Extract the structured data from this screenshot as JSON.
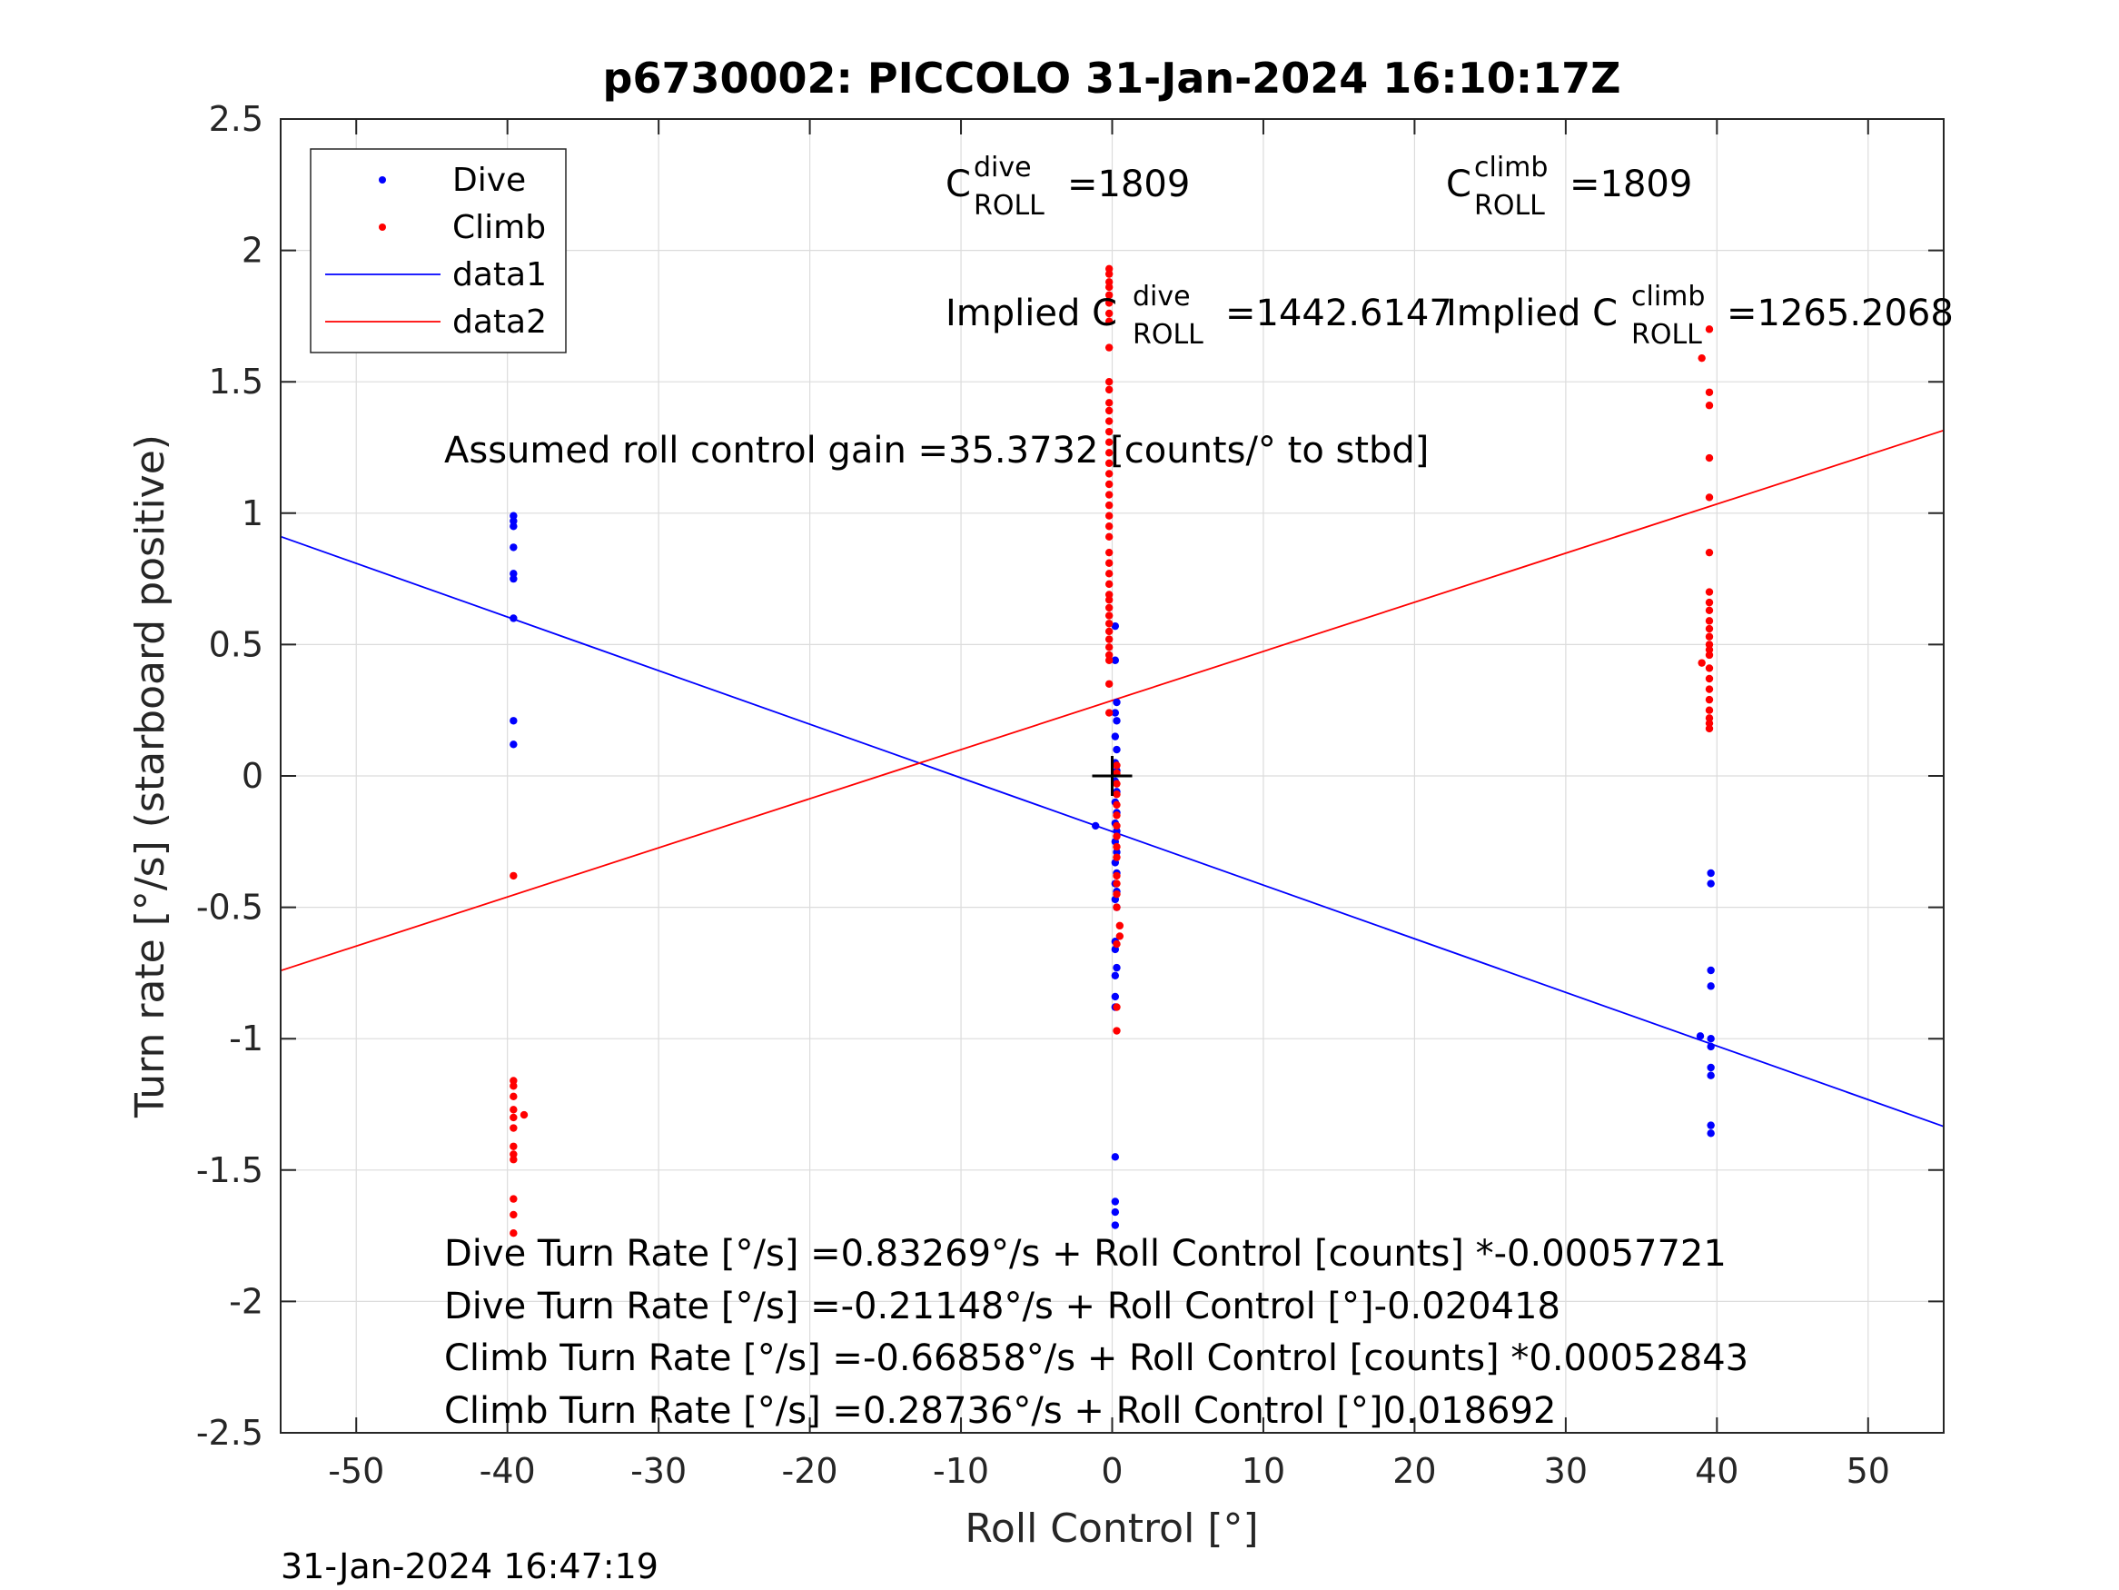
{
  "chart_data": {
    "type": "scatter",
    "title": "p6730002: PICCOLO 31-Jan-2024 16:10:17Z",
    "xlabel": "Roll Control [°]",
    "ylabel": "Turn rate [°/s] (starboard positive)",
    "xlim": [
      -55,
      55
    ],
    "ylim": [
      -2.5,
      2.5
    ],
    "xticks": [
      -50,
      -40,
      -30,
      -20,
      -10,
      0,
      10,
      20,
      30,
      40,
      50
    ],
    "xtick_labels": [
      "-50",
      "-40",
      "-30",
      "-20",
      "-10",
      "0",
      "10",
      "20",
      "30",
      "40",
      "50"
    ],
    "yticks": [
      -2.5,
      -2,
      -1.5,
      -1,
      -0.5,
      0,
      0.5,
      1,
      1.5,
      2,
      2.5
    ],
    "ytick_labels": [
      "-2.5",
      "-2",
      "-1.5",
      "-1",
      "-0.5",
      "0",
      "0.5",
      "1",
      "1.5",
      "2",
      "2.5"
    ],
    "grid": true,
    "legend_position": "top-left",
    "legend": [
      {
        "label": "Dive",
        "kind": "marker",
        "color": "#0000ff"
      },
      {
        "label": "Climb",
        "kind": "marker",
        "color": "#ff0000"
      },
      {
        "label": "data1",
        "kind": "line",
        "color": "#0000ff"
      },
      {
        "label": "data2",
        "kind": "line",
        "color": "#ff0000"
      }
    ],
    "series": [
      {
        "name": "Dive",
        "kind": "scatter",
        "color": "#0000ff",
        "points": [
          [
            -39.6,
            0.99
          ],
          [
            -39.6,
            0.97
          ],
          [
            -39.6,
            0.95
          ],
          [
            -39.6,
            0.87
          ],
          [
            -39.6,
            0.77
          ],
          [
            -39.6,
            0.75
          ],
          [
            -39.6,
            0.6
          ],
          [
            -39.6,
            0.21
          ],
          [
            -39.6,
            0.12
          ],
          [
            0.2,
            0.57
          ],
          [
            0.2,
            0.44
          ],
          [
            0.3,
            0.28
          ],
          [
            0.2,
            0.24
          ],
          [
            0.3,
            0.21
          ],
          [
            0.2,
            0.15
          ],
          [
            0.3,
            0.1
          ],
          [
            0.2,
            0.05
          ],
          [
            0.3,
            0.02
          ],
          [
            0.2,
            -0.02
          ],
          [
            0.3,
            -0.06
          ],
          [
            0.2,
            -0.1
          ],
          [
            0.3,
            -0.14
          ],
          [
            0.2,
            -0.18
          ],
          [
            0.3,
            -0.21
          ],
          [
            0.2,
            -0.25
          ],
          [
            0.3,
            -0.29
          ],
          [
            0.2,
            -0.33
          ],
          [
            0.3,
            -0.37
          ],
          [
            0.2,
            -0.41
          ],
          [
            0.3,
            -0.44
          ],
          [
            0.2,
            -0.47
          ],
          [
            0.3,
            -0.5
          ],
          [
            0.2,
            -0.63
          ],
          [
            0.2,
            -0.66
          ],
          [
            0.3,
            -0.73
          ],
          [
            0.2,
            -0.76
          ],
          [
            0.2,
            -0.84
          ],
          [
            0.2,
            -0.88
          ],
          [
            0.2,
            -1.45
          ],
          [
            0.2,
            -1.62
          ],
          [
            0.2,
            -1.66
          ],
          [
            0.2,
            -1.71
          ],
          [
            -1.1,
            -0.19
          ],
          [
            39.6,
            -0.37
          ],
          [
            39.6,
            -0.41
          ],
          [
            39.6,
            -0.74
          ],
          [
            39.6,
            -0.8
          ],
          [
            38.9,
            -0.99
          ],
          [
            39.6,
            -1.0
          ],
          [
            39.6,
            -1.03
          ],
          [
            39.6,
            -1.11
          ],
          [
            39.6,
            -1.14
          ],
          [
            39.6,
            -1.33
          ],
          [
            39.6,
            -1.36
          ]
        ]
      },
      {
        "name": "Climb",
        "kind": "scatter",
        "color": "#ff0000",
        "points": [
          [
            -39.6,
            -0.38
          ],
          [
            -39.6,
            -1.16
          ],
          [
            -39.6,
            -1.18
          ],
          [
            -39.6,
            -1.22
          ],
          [
            -39.6,
            -1.27
          ],
          [
            -38.9,
            -1.29
          ],
          [
            -39.6,
            -1.3
          ],
          [
            -39.6,
            -1.34
          ],
          [
            -39.6,
            -1.41
          ],
          [
            -39.6,
            -1.44
          ],
          [
            -39.6,
            -1.46
          ],
          [
            -39.6,
            -1.61
          ],
          [
            -39.6,
            -1.67
          ],
          [
            -39.6,
            -1.74
          ],
          [
            -0.2,
            1.93
          ],
          [
            -0.2,
            1.91
          ],
          [
            -0.2,
            1.88
          ],
          [
            -0.2,
            1.86
          ],
          [
            -0.2,
            1.83
          ],
          [
            -0.2,
            1.8
          ],
          [
            -0.2,
            1.76
          ],
          [
            -0.2,
            1.73
          ],
          [
            -0.2,
            1.63
          ],
          [
            -0.2,
            1.5
          ],
          [
            -0.2,
            1.47
          ],
          [
            -0.2,
            1.42
          ],
          [
            -0.2,
            1.39
          ],
          [
            -0.2,
            1.35
          ],
          [
            -0.2,
            1.31
          ],
          [
            -0.2,
            1.27
          ],
          [
            -0.2,
            1.23
          ],
          [
            -0.2,
            1.19
          ],
          [
            -0.2,
            1.15
          ],
          [
            -0.2,
            1.11
          ],
          [
            -0.2,
            1.07
          ],
          [
            -0.2,
            1.03
          ],
          [
            -0.2,
            0.99
          ],
          [
            -0.2,
            0.95
          ],
          [
            -0.2,
            0.91
          ],
          [
            -0.2,
            0.85
          ],
          [
            -0.2,
            0.81
          ],
          [
            -0.2,
            0.77
          ],
          [
            -0.2,
            0.73
          ],
          [
            -0.2,
            0.69
          ],
          [
            -0.2,
            0.67
          ],
          [
            -0.2,
            0.64
          ],
          [
            -0.2,
            0.61
          ],
          [
            -0.2,
            0.58
          ],
          [
            -0.2,
            0.55
          ],
          [
            -0.2,
            0.52
          ],
          [
            -0.2,
            0.49
          ],
          [
            -0.2,
            0.46
          ],
          [
            -0.2,
            0.44
          ],
          [
            -0.2,
            0.35
          ],
          [
            -0.2,
            0.24
          ],
          [
            0.3,
            0.04
          ],
          [
            0.3,
            0.01
          ],
          [
            0.3,
            -0.03
          ],
          [
            0.3,
            -0.07
          ],
          [
            0.3,
            -0.11
          ],
          [
            0.3,
            -0.15
          ],
          [
            0.3,
            -0.19
          ],
          [
            0.3,
            -0.23
          ],
          [
            0.3,
            -0.27
          ],
          [
            0.3,
            -0.31
          ],
          [
            0.3,
            -0.38
          ],
          [
            0.3,
            -0.41
          ],
          [
            0.3,
            -0.45
          ],
          [
            0.3,
            -0.5
          ],
          [
            0.5,
            -0.57
          ],
          [
            0.5,
            -0.61
          ],
          [
            0.3,
            -0.64
          ],
          [
            0.3,
            -0.88
          ],
          [
            0.3,
            -0.97
          ],
          [
            39.5,
            1.7
          ],
          [
            39.0,
            1.59
          ],
          [
            39.5,
            1.46
          ],
          [
            39.5,
            1.41
          ],
          [
            39.5,
            1.21
          ],
          [
            39.5,
            1.06
          ],
          [
            39.5,
            0.85
          ],
          [
            39.5,
            0.7
          ],
          [
            39.5,
            0.66
          ],
          [
            39.5,
            0.63
          ],
          [
            39.5,
            0.59
          ],
          [
            39.5,
            0.56
          ],
          [
            39.5,
            0.53
          ],
          [
            39.5,
            0.5
          ],
          [
            39.5,
            0.48
          ],
          [
            39.5,
            0.46
          ],
          [
            39.0,
            0.43
          ],
          [
            39.5,
            0.41
          ],
          [
            39.5,
            0.37
          ],
          [
            39.5,
            0.33
          ],
          [
            39.5,
            0.29
          ],
          [
            39.5,
            0.25
          ],
          [
            39.5,
            0.22
          ],
          [
            39.5,
            0.2
          ],
          [
            39.5,
            0.18
          ]
        ]
      },
      {
        "name": "data1",
        "kind": "line",
        "color": "#0000ff",
        "x": [
          -55,
          55
        ],
        "y": [
          0.911,
          -1.334
        ]
      },
      {
        "name": "data2",
        "kind": "line",
        "color": "#ff0000",
        "x": [
          -55,
          55
        ],
        "y": [
          -0.741,
          1.315
        ]
      }
    ],
    "marker": {
      "x": 0,
      "y": 0,
      "symbol": "+",
      "color": "#000000"
    },
    "annotations": {
      "c_dive": {
        "main": "C",
        "sup": "dive",
        "sub": "ROLL",
        "value": "=1809"
      },
      "c_climb": {
        "main": "C",
        "sup": "climb",
        "sub": "ROLL",
        "value": "=1809"
      },
      "implied_dive": {
        "main": "Implied C",
        "sup": "dive",
        "sub": "ROLL",
        "value": "=1442.6147"
      },
      "implied_climb": {
        "main": "Implied C",
        "sup": "climb",
        "sub": "ROLL",
        "value": "=1265.2068"
      },
      "gain": "Assumed roll control gain =35.3732 [counts/° to stbd]",
      "fits": [
        "Dive Turn Rate [°/s] =0.83269°/s + Roll Control [counts] *-0.00057721",
        "Dive Turn Rate [°/s] =-0.21148°/s + Roll Control [°]-0.020418",
        "Climb Turn Rate [°/s] =-0.66858°/s + Roll Control [counts] *0.00052843",
        "Climb Turn Rate [°/s] =0.28736°/s + Roll Control [°]0.018692"
      ]
    },
    "footer_timestamp": "31-Jan-2024 16:47:19"
  }
}
